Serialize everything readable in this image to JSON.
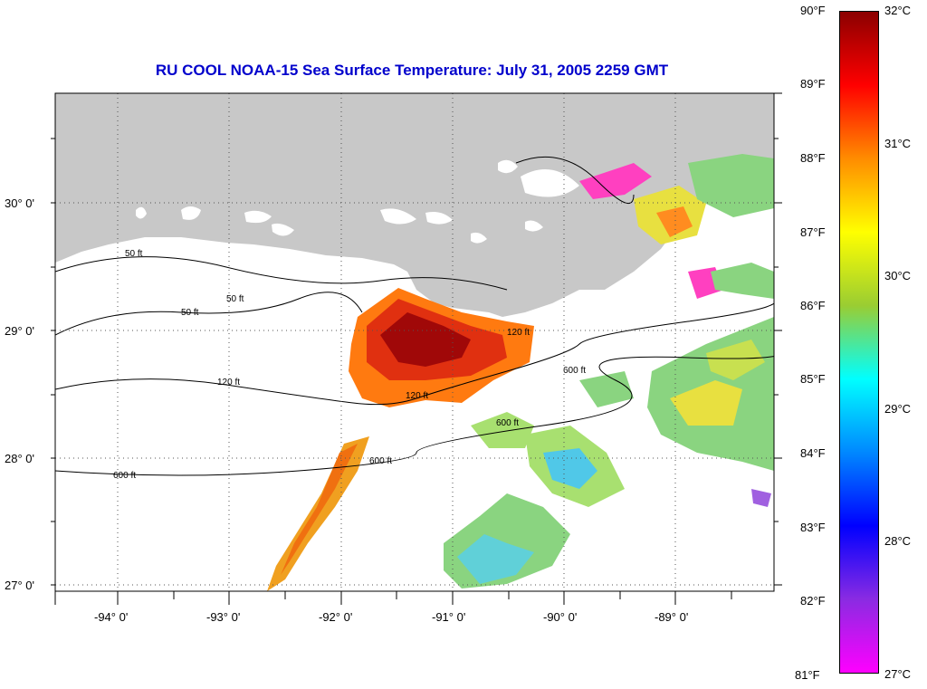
{
  "title": "RU COOL  NOAA-15  Sea Surface Temperature:  July 31, 2005 2259 GMT",
  "colors": {
    "title": "#0000cc",
    "land": "#c8c8c8",
    "frame": "#000000"
  },
  "map": {
    "lat_ticks": [
      "30° 0'",
      "29° 0'",
      "28° 0'",
      "27° 0'"
    ],
    "lon_ticks": [
      "-94° 0'",
      "-93° 0'",
      "-92° 0'",
      "-91° 0'",
      "-90° 0'",
      "-89° 0'"
    ],
    "contours": [
      "50 ft",
      "50 ft",
      "50 ft",
      "120 ft",
      "120 ft",
      "600 ft",
      "600 ft",
      "600 ft",
      "120 ft",
      "600 ft"
    ]
  },
  "colorbar": {
    "fahrenheit": [
      "90°F",
      "89°F",
      "88°F",
      "87°F",
      "86°F",
      "85°F",
      "84°F",
      "83°F",
      "82°F",
      "81°F"
    ],
    "celsius": [
      "32°C",
      "31°C",
      "30°C",
      "29°C",
      "28°C",
      "27°C"
    ],
    "scale": [
      "#8b0000",
      "#ff0000",
      "#ff8c00",
      "#ffff00",
      "#9acd32",
      "#00ffff",
      "#0088ff",
      "#0000ff",
      "#8a2be2",
      "#ff00ff"
    ]
  }
}
